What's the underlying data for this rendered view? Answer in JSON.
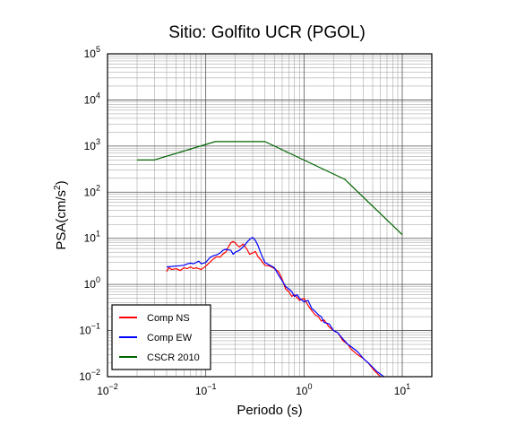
{
  "chart_data": {
    "type": "line",
    "title": "Sitio: Golfito UCR (PGOL)",
    "xlabel": "Periodo (s)",
    "ylabel_main": "PSA(cm/s",
    "ylabel_sup": "2",
    "ylabel_close": ")",
    "xscale": "log",
    "yscale": "log",
    "xlim": [
      0.01,
      20
    ],
    "ylim": [
      0.01,
      100000
    ],
    "x_ticks": [
      {
        "value": 0.01,
        "base": "10",
        "exp": "−2"
      },
      {
        "value": 0.1,
        "base": "10",
        "exp": "−1"
      },
      {
        "value": 1,
        "base": "10",
        "exp": "0"
      },
      {
        "value": 10,
        "base": "10",
        "exp": "1"
      }
    ],
    "y_ticks": [
      {
        "value": 0.01,
        "base": "10",
        "exp": "−2"
      },
      {
        "value": 0.1,
        "base": "10",
        "exp": "−1"
      },
      {
        "value": 1,
        "base": "10",
        "exp": "0"
      },
      {
        "value": 10,
        "base": "10",
        "exp": "1"
      },
      {
        "value": 100,
        "base": "10",
        "exp": "2"
      },
      {
        "value": 1000,
        "base": "10",
        "exp": "3"
      },
      {
        "value": 10000,
        "base": "10",
        "exp": "4"
      },
      {
        "value": 100000,
        "base": "10",
        "exp": "5"
      }
    ],
    "grid": true,
    "legend_position": "bottom-left",
    "series": [
      {
        "name": "Comp NS",
        "color": "#ff0000",
        "points": [
          [
            0.04,
            1.9
          ],
          [
            0.042,
            2.3
          ],
          [
            0.045,
            2.1
          ],
          [
            0.05,
            2.2
          ],
          [
            0.055,
            2.0
          ],
          [
            0.06,
            2.3
          ],
          [
            0.065,
            2.2
          ],
          [
            0.07,
            2.4
          ],
          [
            0.075,
            2.2
          ],
          [
            0.08,
            2.3
          ],
          [
            0.09,
            2.1
          ],
          [
            0.1,
            2.5
          ],
          [
            0.11,
            3.0
          ],
          [
            0.12,
            3.6
          ],
          [
            0.13,
            4.0
          ],
          [
            0.14,
            3.9
          ],
          [
            0.15,
            4.6
          ],
          [
            0.16,
            5.0
          ],
          [
            0.17,
            6.5
          ],
          [
            0.18,
            8.0
          ],
          [
            0.19,
            8.5
          ],
          [
            0.2,
            8.0
          ],
          [
            0.21,
            7.0
          ],
          [
            0.22,
            6.5
          ],
          [
            0.24,
            7.5
          ],
          [
            0.26,
            6.0
          ],
          [
            0.28,
            4.5
          ],
          [
            0.3,
            4.8
          ],
          [
            0.32,
            5.2
          ],
          [
            0.34,
            4.0
          ],
          [
            0.36,
            3.5
          ],
          [
            0.38,
            3.0
          ],
          [
            0.4,
            2.6
          ],
          [
            0.45,
            2.5
          ],
          [
            0.5,
            2.2
          ],
          [
            0.55,
            1.9
          ],
          [
            0.6,
            1.3
          ],
          [
            0.65,
            0.8
          ],
          [
            0.7,
            0.7
          ],
          [
            0.75,
            0.55
          ],
          [
            0.8,
            0.6
          ],
          [
            0.9,
            0.45
          ],
          [
            1.0,
            0.5
          ],
          [
            1.1,
            0.35
          ],
          [
            1.2,
            0.27
          ],
          [
            1.3,
            0.22
          ],
          [
            1.4,
            0.2
          ],
          [
            1.5,
            0.16
          ],
          [
            1.6,
            0.17
          ],
          [
            1.8,
            0.12
          ],
          [
            2.0,
            0.1
          ],
          [
            2.2,
            0.09
          ],
          [
            2.5,
            0.06
          ],
          [
            2.8,
            0.05
          ],
          [
            3.0,
            0.04
          ],
          [
            3.5,
            0.03
          ],
          [
            4.0,
            0.025
          ],
          [
            4.5,
            0.02
          ],
          [
            5.0,
            0.015
          ],
          [
            5.5,
            0.012
          ],
          [
            6.0,
            0.01
          ]
        ]
      },
      {
        "name": "Comp EW",
        "color": "#0000ff",
        "points": [
          [
            0.04,
            2.4
          ],
          [
            0.05,
            2.5
          ],
          [
            0.06,
            2.6
          ],
          [
            0.065,
            2.8
          ],
          [
            0.07,
            2.9
          ],
          [
            0.075,
            2.8
          ],
          [
            0.08,
            3.0
          ],
          [
            0.085,
            3.2
          ],
          [
            0.09,
            2.8
          ],
          [
            0.1,
            3.0
          ],
          [
            0.11,
            3.8
          ],
          [
            0.12,
            4.2
          ],
          [
            0.13,
            4.4
          ],
          [
            0.14,
            4.8
          ],
          [
            0.15,
            5.5
          ],
          [
            0.16,
            5.8
          ],
          [
            0.17,
            5.6
          ],
          [
            0.18,
            5.5
          ],
          [
            0.19,
            4.5
          ],
          [
            0.2,
            5.0
          ],
          [
            0.22,
            5.5
          ],
          [
            0.24,
            6.5
          ],
          [
            0.26,
            8.0
          ],
          [
            0.28,
            9.5
          ],
          [
            0.3,
            10.5
          ],
          [
            0.32,
            9.0
          ],
          [
            0.34,
            7.0
          ],
          [
            0.36,
            5.0
          ],
          [
            0.38,
            3.8
          ],
          [
            0.4,
            3.0
          ],
          [
            0.45,
            2.6
          ],
          [
            0.5,
            2.3
          ],
          [
            0.55,
            1.6
          ],
          [
            0.6,
            1.2
          ],
          [
            0.65,
            0.9
          ],
          [
            0.7,
            0.8
          ],
          [
            0.75,
            0.7
          ],
          [
            0.8,
            0.55
          ],
          [
            0.85,
            0.6
          ],
          [
            0.9,
            0.5
          ],
          [
            1.0,
            0.42
          ],
          [
            1.1,
            0.45
          ],
          [
            1.2,
            0.3
          ],
          [
            1.3,
            0.26
          ],
          [
            1.4,
            0.22
          ],
          [
            1.5,
            0.2
          ],
          [
            1.6,
            0.15
          ],
          [
            1.8,
            0.14
          ],
          [
            2.0,
            0.1
          ],
          [
            2.2,
            0.09
          ],
          [
            2.5,
            0.065
          ],
          [
            2.8,
            0.05
          ],
          [
            3.0,
            0.045
          ],
          [
            3.5,
            0.035
          ],
          [
            4.0,
            0.025
          ],
          [
            4.5,
            0.02
          ],
          [
            5.0,
            0.016
          ],
          [
            5.5,
            0.013
          ],
          [
            6.5,
            0.01
          ]
        ]
      },
      {
        "name": "CSCR 2010",
        "color": "#006400",
        "points": [
          [
            0.02,
            500
          ],
          [
            0.03,
            500
          ],
          [
            0.125,
            1250
          ],
          [
            0.4,
            1250
          ],
          [
            2.6,
            190
          ],
          [
            10,
            12
          ]
        ]
      }
    ]
  }
}
